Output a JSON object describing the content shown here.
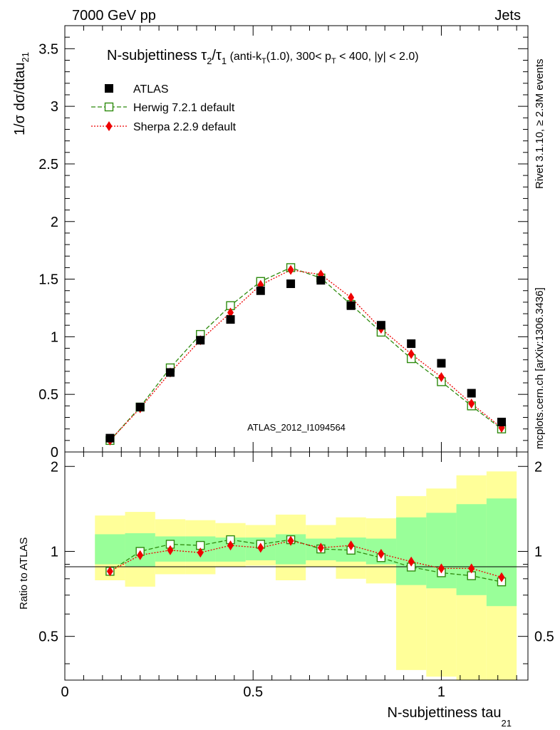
{
  "header": {
    "left": "7000 GeV pp",
    "right": "Jets"
  },
  "side": {
    "rivet": "Rivet 3.1.10, ≥ 2.3M events",
    "mcplots": "mcplots.cern.ch [arXiv:1306.3436]"
  },
  "title": {
    "main": "N-subjettiness τ",
    "sub2": "2",
    "slash": "/τ",
    "sub1": "1",
    "cut_a": " (anti-k",
    "cut_a_sub": "T",
    "cut_b": "(1.0), 300< p",
    "cut_b_sub": "T",
    "cut_c": " < 400, |y| < 2.0)"
  },
  "watermark": "ATLAS_2012_I1094564",
  "labels": {
    "ylabel_main": "1/σ dσ/dtau",
    "ylabel_main_sub": "21",
    "ylabel_ratio": "Ratio to ATLAS",
    "xlabel": "N-subjettiness tau",
    "xlabel_sub": "21"
  },
  "legend": [
    {
      "label": "ATLAS",
      "color": "#000000",
      "marker": "filled-square"
    },
    {
      "label": "Herwig 7.2.1 default",
      "color": "#2e8b0e",
      "marker": "open-square"
    },
    {
      "label": "Sherpa 2.2.9 default",
      "color": "#ee0000",
      "marker": "filled-diamond"
    }
  ],
  "chart_data": [
    {
      "type": "scatter",
      "xlim": [
        0,
        1.23
      ],
      "ylim": [
        0,
        3.7
      ],
      "yticks": [
        "0",
        "0.5",
        "1",
        "1.5",
        "2",
        "2.5",
        "3",
        "3.5"
      ],
      "ytick_values": [
        0,
        0.5,
        1,
        1.5,
        2,
        2.5,
        3,
        3.5
      ],
      "x": [
        0.12,
        0.2,
        0.28,
        0.36,
        0.44,
        0.52,
        0.6,
        0.68,
        0.76,
        0.84,
        0.92,
        1.0,
        1.08,
        1.16
      ],
      "series": [
        {
          "name": "ATLAS",
          "values": [
            0.12,
            0.39,
            0.69,
            0.97,
            1.15,
            1.4,
            1.46,
            1.49,
            1.27,
            1.1,
            0.94,
            0.77,
            0.51,
            0.26
          ]
        },
        {
          "name": "Herwig 7.2.1 default",
          "values": [
            0.1,
            0.39,
            0.73,
            1.02,
            1.27,
            1.48,
            1.6,
            1.51,
            1.28,
            1.04,
            0.81,
            0.61,
            0.4,
            0.2
          ]
        },
        {
          "name": "Sherpa 2.2.9 default",
          "values": [
            0.1,
            0.38,
            0.69,
            0.97,
            1.21,
            1.45,
            1.58,
            1.54,
            1.34,
            1.07,
            0.85,
            0.65,
            0.42,
            0.21
          ]
        }
      ]
    },
    {
      "type": "line",
      "xlim": [
        0,
        1.23
      ],
      "ylim": [
        0.35,
        2.25
      ],
      "yticks": [
        "0.5",
        "1",
        "2"
      ],
      "ytick_values": [
        0.5,
        1,
        2
      ],
      "xticks": [
        "0",
        "0.5",
        "1"
      ],
      "xtick_values": [
        0,
        0.5,
        1
      ],
      "x": [
        0.12,
        0.2,
        0.28,
        0.36,
        0.44,
        0.52,
        0.6,
        0.68,
        0.76,
        0.84,
        0.92,
        1.0,
        1.08,
        1.16
      ],
      "bin_edges": [
        0.08,
        0.16,
        0.24,
        0.32,
        0.4,
        0.48,
        0.56,
        0.64,
        0.72,
        0.8,
        0.88,
        0.96,
        1.04,
        1.12,
        1.2
      ],
      "band_inner": {
        "low": [
          0.9,
          0.88,
          0.92,
          0.92,
          0.92,
          0.93,
          0.9,
          0.93,
          0.92,
          0.9,
          0.76,
          0.74,
          0.7,
          0.64
        ],
        "high": [
          1.15,
          1.16,
          1.13,
          1.13,
          1.12,
          1.12,
          1.15,
          1.11,
          1.12,
          1.11,
          1.32,
          1.37,
          1.47,
          1.54
        ]
      },
      "band_outer": {
        "low": [
          0.79,
          0.75,
          0.83,
          0.83,
          0.88,
          0.89,
          0.79,
          0.88,
          0.8,
          0.77,
          0.38,
          0.36,
          0.35,
          0.35
        ],
        "high": [
          1.34,
          1.38,
          1.3,
          1.29,
          1.26,
          1.24,
          1.35,
          1.24,
          1.32,
          1.31,
          1.57,
          1.67,
          1.86,
          1.92
        ]
      },
      "series": [
        {
          "name": "Herwig 7.2.1 default",
          "values": [
            0.85,
            1.0,
            1.06,
            1.05,
            1.1,
            1.06,
            1.1,
            1.02,
            1.01,
            0.95,
            0.88,
            0.84,
            0.82,
            0.78
          ]
        },
        {
          "name": "Sherpa 2.2.9 default",
          "values": [
            0.85,
            0.97,
            1.01,
            0.99,
            1.05,
            1.03,
            1.09,
            1.03,
            1.05,
            0.98,
            0.92,
            0.87,
            0.87,
            0.81
          ]
        }
      ]
    }
  ],
  "colors": {
    "band_inner": "#99ff99",
    "band_outer": "#ffff99",
    "herwig": "#2e8b0e",
    "sherpa": "#ee0000",
    "atlas": "#000000",
    "watermark": "#999999",
    "side_text": "#888888"
  }
}
